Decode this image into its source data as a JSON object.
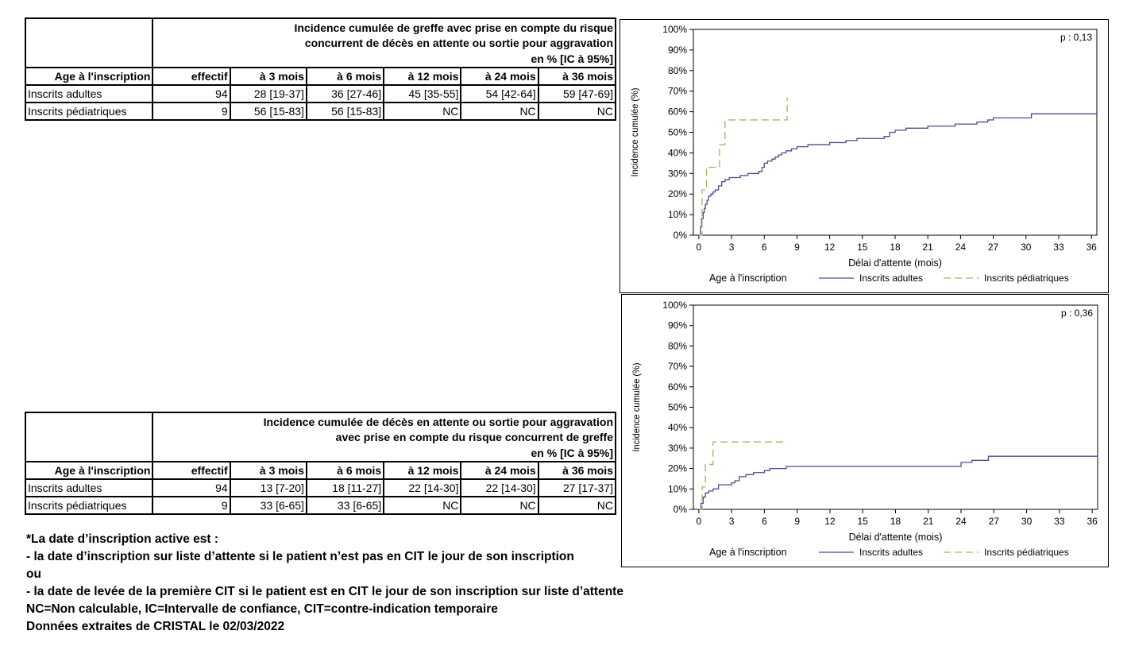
{
  "table1": {
    "title_line1": "Incidence cumulée de greffe avec prise en compte du risque",
    "title_line2": "concurrent de décès en attente ou sortie pour aggravation",
    "unit": "en % [IC à 95%]",
    "headers": [
      "Age à l'inscription",
      "effectif",
      "à 3 mois",
      "à 6 mois",
      "à 12 mois",
      "à 24 mois",
      "à 36 mois"
    ],
    "rows": [
      {
        "label": "Inscrits adultes",
        "n": "94",
        "v3": "28 [19-37]",
        "v6": "36 [27-46]",
        "v12": "45 [35-55]",
        "v24": "54 [42-64]",
        "v36": "59 [47-69]"
      },
      {
        "label": "Inscrits pédiatriques",
        "n": "9",
        "v3": "56 [15-83]",
        "v6": "56 [15-83]",
        "v12": "NC",
        "v24": "NC",
        "v36": "NC"
      }
    ]
  },
  "table2": {
    "title_line1": "Incidence cumulée de décès en attente ou sortie pour aggravation",
    "title_line2": "avec prise en compte du risque concurrent de greffe",
    "unit": "en % [IC à 95%]",
    "headers": [
      "Age à l'inscription",
      "effectif",
      "à 3 mois",
      "à 6 mois",
      "à 12 mois",
      "à 24 mois",
      "à 36 mois"
    ],
    "rows": [
      {
        "label": "Inscrits adultes",
        "n": "94",
        "v3": "13 [7-20]",
        "v6": "18 [11-27]",
        "v12": "22 [14-30]",
        "v24": "22 [14-30]",
        "v36": "27 [17-37]"
      },
      {
        "label": "Inscrits pédiatriques",
        "n": "9",
        "v3": "33 [6-65]",
        "v6": "33 [6-65]",
        "v12": "NC",
        "v24": "NC",
        "v36": "NC"
      }
    ]
  },
  "chart_data": [
    {
      "type": "line",
      "step": true,
      "pvalue": "p : 0,13",
      "xlabel": "Délai d'attente (mois)",
      "ylabel": "Incidence cumulée (%)",
      "xlim": [
        0,
        36
      ],
      "ylim": [
        0,
        100
      ],
      "xticks": [
        0,
        3,
        6,
        9,
        12,
        15,
        18,
        21,
        24,
        27,
        30,
        33,
        36
      ],
      "yticks": [
        "0%",
        "10%",
        "20%",
        "30%",
        "40%",
        "50%",
        "60%",
        "70%",
        "80%",
        "90%",
        "100%"
      ],
      "legend_title": "Age à l'inscription",
      "legend_position": "bottom",
      "series": [
        {
          "name": "Inscrits adultes",
          "color": "#4b4b8f",
          "dash": "solid",
          "x": [
            0,
            0.15,
            0.25,
            0.4,
            0.5,
            0.6,
            0.75,
            0.9,
            1.1,
            1.3,
            1.5,
            1.8,
            2.1,
            2.4,
            2.8,
            3.3,
            3.8,
            4.2,
            4.5,
            5.0,
            5.5,
            5.8,
            6.0,
            6.3,
            6.7,
            7.0,
            7.3,
            7.6,
            8.0,
            8.5,
            9.0,
            10.0,
            11.0,
            12.0,
            13.5,
            14.5,
            17.0,
            17.5,
            18.0,
            19.0,
            20.5,
            21.0,
            22.5,
            23.5,
            24.0,
            25.5,
            26.5,
            27.0,
            29.0,
            30.5,
            36.5
          ],
          "y": [
            0,
            4,
            8,
            11,
            13,
            15,
            17,
            19,
            20,
            21,
            22,
            24,
            26,
            27,
            28,
            28,
            29,
            29,
            30,
            30,
            31,
            33,
            35,
            36,
            37,
            38,
            39,
            40,
            41,
            42,
            43,
            44,
            44,
            45,
            46,
            47,
            48,
            50,
            51,
            52,
            52,
            53,
            53,
            54,
            54,
            55,
            56,
            57,
            57,
            59,
            59
          ]
        },
        {
          "name": "Inscrits pédiatriques",
          "color": "#a9b06a",
          "dash": "dashed",
          "x": [
            0,
            0.3,
            0.7,
            1.9,
            2.4,
            8.1
          ],
          "y": [
            0,
            22,
            33,
            44,
            56,
            67
          ]
        }
      ]
    },
    {
      "type": "line",
      "step": true,
      "pvalue": "p : 0,36",
      "xlabel": "Délai d'attente (mois)",
      "ylabel": "Incidence cumulée (%)",
      "xlim": [
        0,
        36
      ],
      "ylim": [
        0,
        100
      ],
      "xticks": [
        0,
        3,
        6,
        9,
        12,
        15,
        18,
        21,
        24,
        27,
        30,
        33,
        36
      ],
      "yticks": [
        "0%",
        "10%",
        "20%",
        "30%",
        "40%",
        "50%",
        "60%",
        "70%",
        "80%",
        "90%",
        "100%"
      ],
      "legend_title": "Age à l'inscription",
      "legend_position": "bottom",
      "series": [
        {
          "name": "Inscrits adultes",
          "color": "#4b4b8f",
          "dash": "solid",
          "x": [
            0,
            0.2,
            0.4,
            0.6,
            0.9,
            1.3,
            1.8,
            3.0,
            3.3,
            3.7,
            4.3,
            5.0,
            6.0,
            6.5,
            8.0,
            9.0,
            24.0,
            25.0,
            26.5,
            36.5
          ],
          "y": [
            0,
            3,
            6,
            8,
            9,
            10,
            12,
            13,
            14,
            16,
            17,
            18,
            19,
            20,
            21,
            21,
            23,
            24,
            26,
            26
          ]
        },
        {
          "name": "Inscrits pédiatriques",
          "color": "#a9b06a",
          "dash": "dashed",
          "x": [
            0,
            0.3,
            0.6,
            1.3,
            8.1
          ],
          "y": [
            0,
            11,
            22,
            33,
            33
          ]
        }
      ]
    }
  ],
  "notes": [
    "*La date d’inscription active est :",
    "- la date d’inscription sur liste d’attente si le patient n’est pas en CIT le jour de son inscription",
    "ou",
    "- la date de levée de la première CIT si le patient est en CIT le jour de son inscription sur liste d’attente",
    "NC=Non calculable, IC=Intervalle de confiance, CIT=contre-indication temporaire",
    "Données extraites de CRISTAL le 02/03/2022"
  ]
}
